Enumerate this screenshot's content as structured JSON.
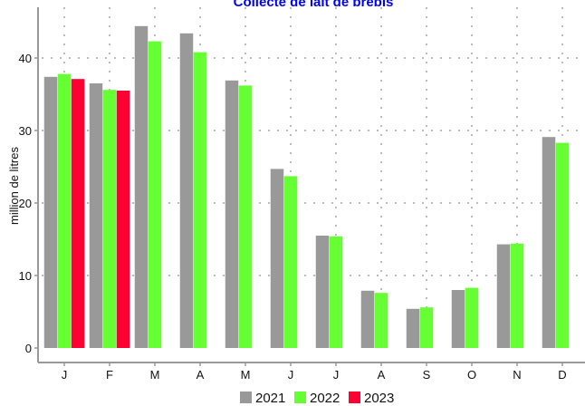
{
  "chart_data": {
    "type": "bar",
    "title": "Collecte de lait de brebis",
    "xlabel": "",
    "ylabel": "million de litres",
    "categories": [
      "J",
      "F",
      "M",
      "A",
      "M",
      "J",
      "J",
      "A",
      "S",
      "O",
      "N",
      "D"
    ],
    "ylim": [
      0,
      45
    ],
    "yticks": [
      0,
      10,
      20,
      30,
      40
    ],
    "grid": true,
    "legend_position": "bottom",
    "series": [
      {
        "name": "2021",
        "color": "#999999",
        "values": [
          37.4,
          36.5,
          44.4,
          43.4,
          36.9,
          24.7,
          15.5,
          7.9,
          5.4,
          8.0,
          14.3,
          29.1
        ]
      },
      {
        "name": "2022",
        "color": "#66FF33",
        "values": [
          37.8,
          35.6,
          42.3,
          40.8,
          36.2,
          23.7,
          15.4,
          7.6,
          5.6,
          8.3,
          14.4,
          28.3
        ]
      },
      {
        "name": "2023",
        "color": "#FF0033",
        "values": [
          37.1,
          35.5,
          null,
          null,
          null,
          null,
          null,
          null,
          null,
          null,
          null,
          null
        ]
      }
    ],
    "colors": {
      "title": "#0000FF",
      "grid": "#BBBBBB",
      "axis": "#999999"
    }
  }
}
